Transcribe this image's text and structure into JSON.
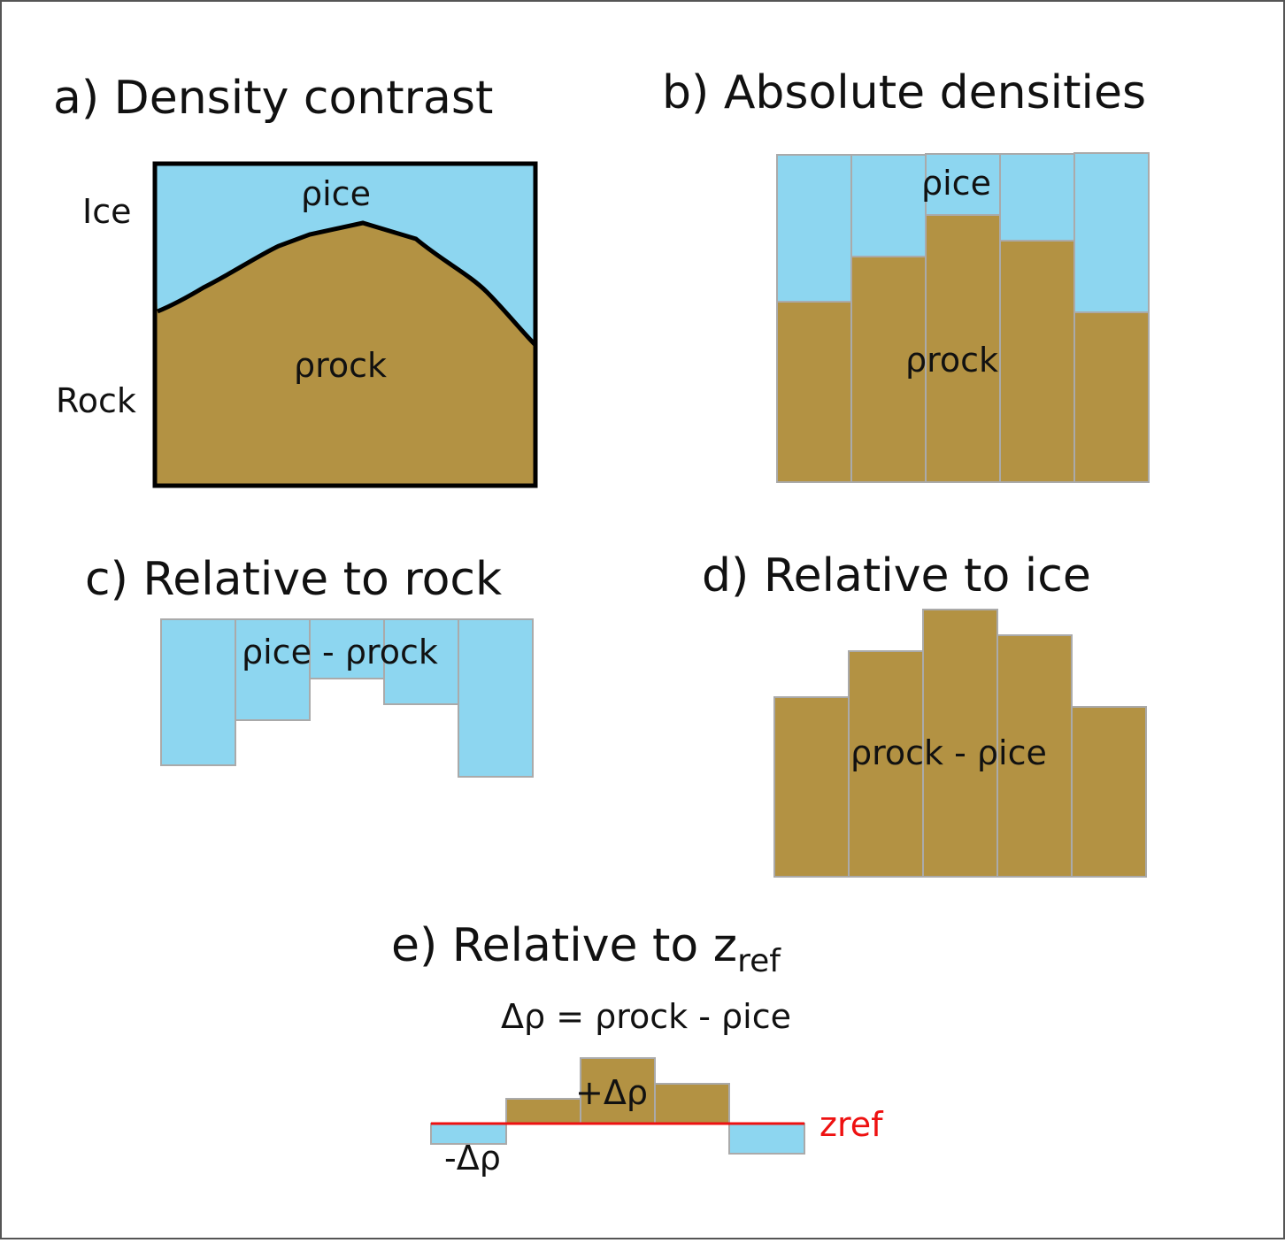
{
  "colors": {
    "ice": "#8dd6f0",
    "rock": "#b39243",
    "ref_line": "#ee1111",
    "border": "#555555",
    "outline": "#000000"
  },
  "panel_a": {
    "title": "a) Density contrast",
    "ice_side_label": "Ice",
    "rock_side_label": "Rock",
    "ice_density_label": "ρice",
    "rock_density_label": "ρrock"
  },
  "panel_b": {
    "title": "b) Absolute densities",
    "ice_density_label": "ρice",
    "rock_density_label": "ρrock"
  },
  "panel_c": {
    "title": "c) Relative to rock",
    "difference_label": "ρice - ρrock"
  },
  "panel_d": {
    "title": "d) Relative to ice",
    "difference_label": "ρrock - ρice"
  },
  "panel_e": {
    "title_main": "e) Relative to z",
    "title_sub": "ref",
    "equation": "Δρ = ρrock - ρice",
    "positive_label": "+Δρ",
    "negative_label": "-Δρ",
    "ref_label_main": "z",
    "ref_label_sub": "ref"
  }
}
